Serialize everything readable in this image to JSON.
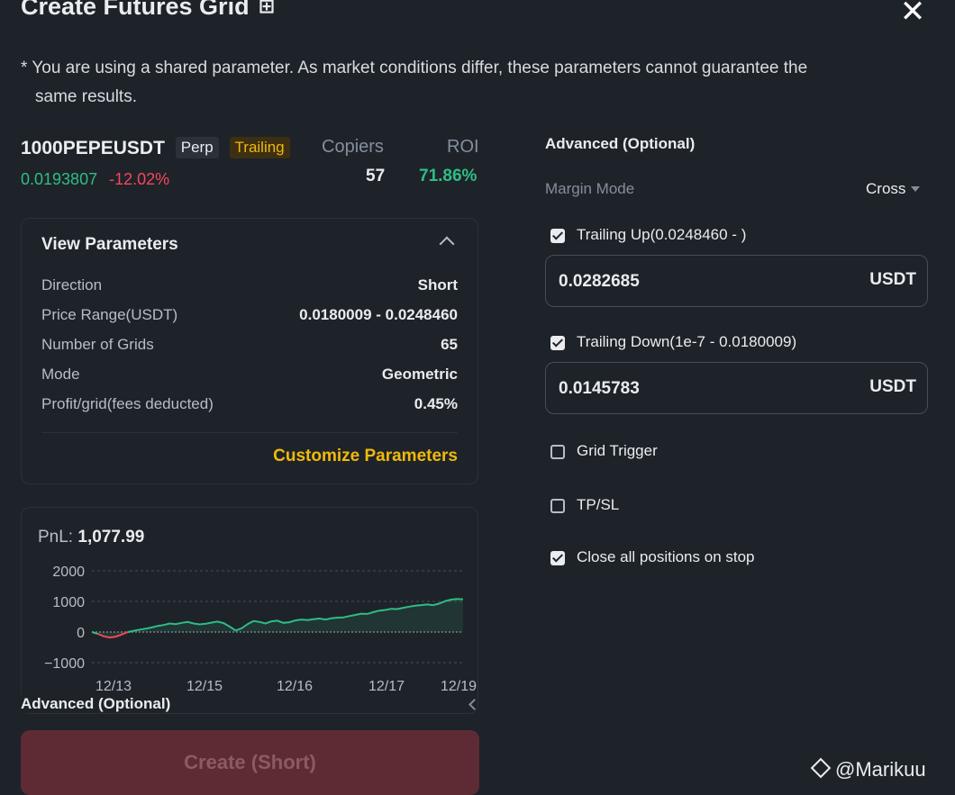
{
  "header": {
    "title": "Create Futures Grid",
    "title_icon": "share-icon",
    "close_icon": "close-icon"
  },
  "notice": {
    "line1": "* You are using a shared parameter. As market conditions differ, these parameters cannot guarantee the",
    "line2": "same results."
  },
  "symbol": {
    "name": "1000PEPEUSDT",
    "badge_perp": "Perp",
    "badge_trailing": "Trailing",
    "price": "0.0193807",
    "change": "-12.02%"
  },
  "stats": {
    "copiers_label": "Copiers",
    "copiers_value": "57",
    "roi_label": "ROI",
    "roi_value": "71.86%"
  },
  "params": {
    "title": "View Parameters",
    "rows": [
      {
        "label": "Direction",
        "value": "Short"
      },
      {
        "label": "Price Range(USDT)",
        "value": "0.0180009 - 0.0248460"
      },
      {
        "label": "Number of Grids",
        "value": "65"
      },
      {
        "label": "Mode",
        "value": "Geometric"
      },
      {
        "label": "Profit/grid(fees deducted)",
        "value": "0.45%"
      }
    ],
    "customize_label": "Customize Parameters"
  },
  "pnl": {
    "label": "PnL:",
    "value": "1,077.99"
  },
  "chart_data": {
    "type": "line",
    "title": "",
    "yticks": [
      2000,
      1000,
      0,
      -1000
    ],
    "ylim": [
      -1000,
      2000
    ],
    "xticks": [
      "12/13",
      "12/15",
      "12/16",
      "12/17",
      "12/19"
    ],
    "series": [
      {
        "values": [
          0,
          -60,
          -140,
          -180,
          -150,
          -80,
          0,
          40,
          80,
          110,
          150,
          200,
          230,
          280,
          260,
          300,
          330,
          280,
          250,
          270,
          310,
          340,
          290,
          180,
          50,
          120,
          260,
          360,
          330,
          280,
          350,
          370,
          300,
          320,
          380,
          410,
          390,
          420,
          440,
          410,
          450,
          470,
          480,
          520,
          560,
          600,
          590,
          650,
          700,
          720,
          760,
          750,
          790,
          830,
          860,
          880,
          900,
          880,
          930,
          1010,
          1060,
          1080,
          1070
        ]
      }
    ]
  },
  "bottom": {
    "advanced_label": "Advanced (Optional)",
    "create_label": "Create (Short)"
  },
  "advanced": {
    "title": "Advanced (Optional)",
    "margin_mode_label": "Margin Mode",
    "margin_mode_value": "Cross",
    "trailing_up_label": "Trailing Up(0.0248460 - )",
    "trailing_up_value": "0.0282685",
    "trailing_down_label": "Trailing Down(1e-7 - 0.0180009)",
    "trailing_down_value": "0.0145783",
    "unit": "USDT",
    "grid_trigger_label": "Grid Trigger",
    "tpsl_label": "TP/SL",
    "close_all_label": "Close all positions on stop"
  },
  "watermark": {
    "text": "@Marikuu"
  },
  "colors": {
    "positive": "#2ebd85",
    "negative": "#f6465d",
    "accent": "#f0b90b",
    "background": "#1e2329"
  }
}
